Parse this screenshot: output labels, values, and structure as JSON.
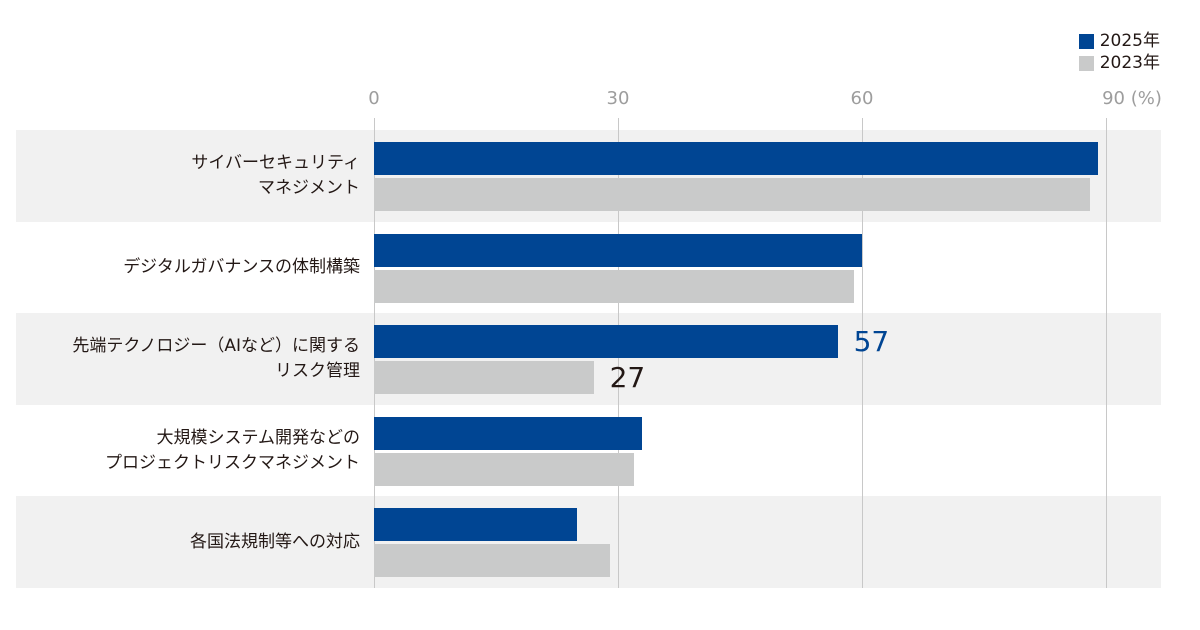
{
  "chart_data": {
    "type": "bar",
    "orientation": "horizontal",
    "title": "",
    "xlabel": "(%)",
    "ylabel": "",
    "xlim": [
      0,
      90
    ],
    "x_ticks": [
      "0",
      "30",
      "60",
      "90"
    ],
    "x_unit": "(%)",
    "grid": true,
    "legend_position": "top-right",
    "categories": [
      "サイバーセキュリティ\nマネジメント",
      "デジタルガバナンスの体制構築",
      "先端テクノロジー（AIなど）に関する\nリスク管理",
      "大規模システム開発などの\nプロジェクトリスクマネジメント",
      "各国法規制等への対応"
    ],
    "series": [
      {
        "name": "2025年",
        "color": "#004593",
        "values": [
          89,
          60,
          57,
          33,
          25
        ]
      },
      {
        "name": "2023年",
        "color": "#c9caca",
        "values": [
          88,
          59,
          27,
          32,
          29
        ]
      }
    ],
    "annotations": [
      {
        "category_index": 2,
        "series": "2025年",
        "text": "57",
        "color": "#004593"
      },
      {
        "category_index": 2,
        "series": "2023年",
        "text": "27",
        "color": "#231815"
      }
    ]
  },
  "legend": {
    "items": [
      {
        "label": "2025年",
        "color": "#004593"
      },
      {
        "label": "2023年",
        "color": "#c9caca"
      }
    ]
  },
  "axis": {
    "ticks": [
      {
        "label": "0",
        "value": 0
      },
      {
        "label": "30",
        "value": 30
      },
      {
        "label": "60",
        "value": 60
      },
      {
        "label": "90 (%)",
        "value": 90
      }
    ]
  },
  "colors": {
    "series_2025": "#004593",
    "series_2023": "#c9caca",
    "row_shade": "#f1f1f1",
    "gridline": "#c8c8c8",
    "tick_text": "#9d9d9d",
    "text": "#231815"
  }
}
